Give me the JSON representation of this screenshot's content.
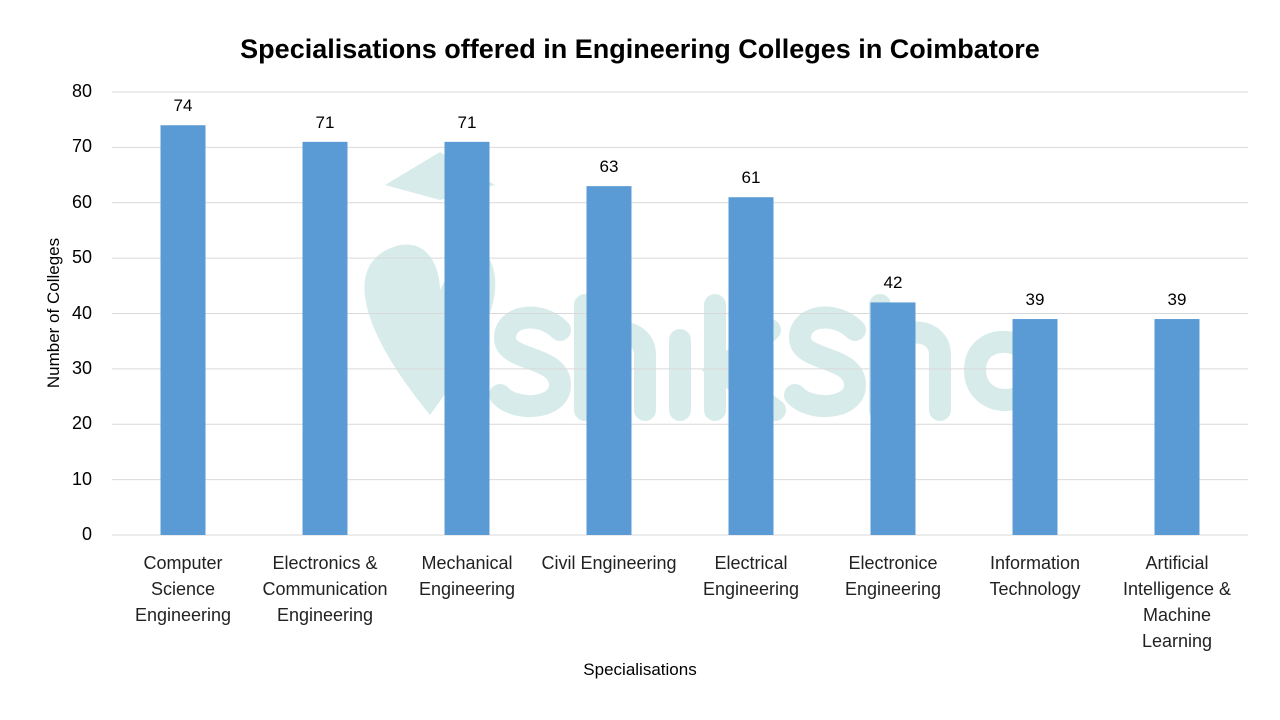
{
  "chart_data": {
    "type": "bar",
    "title": "Specialisations offered in Engineering Colleges in Coimbatore",
    "xlabel": "Specialisations",
    "ylabel": "Number of Colleges",
    "categories": [
      "Computer Science Engineering",
      "Electronics & Communication Engineering",
      "Mechanical Engineering",
      "Civil Engineering",
      "Electrical Engineering",
      "Electronice Engineering",
      "Information Technology",
      "Artificial Intelligence & Machine Learning"
    ],
    "values": [
      74,
      71,
      71,
      63,
      61,
      42,
      39,
      39
    ],
    "yticks": [
      0,
      10,
      20,
      30,
      40,
      50,
      60,
      70,
      80
    ],
    "ylim": [
      0,
      80
    ],
    "grid": true,
    "data_labels": true,
    "bar_color": "#5b9bd5",
    "grid_color": "#d9d9d9"
  },
  "watermark": {
    "text": "shiksha",
    "color": "#b9dcdc"
  }
}
